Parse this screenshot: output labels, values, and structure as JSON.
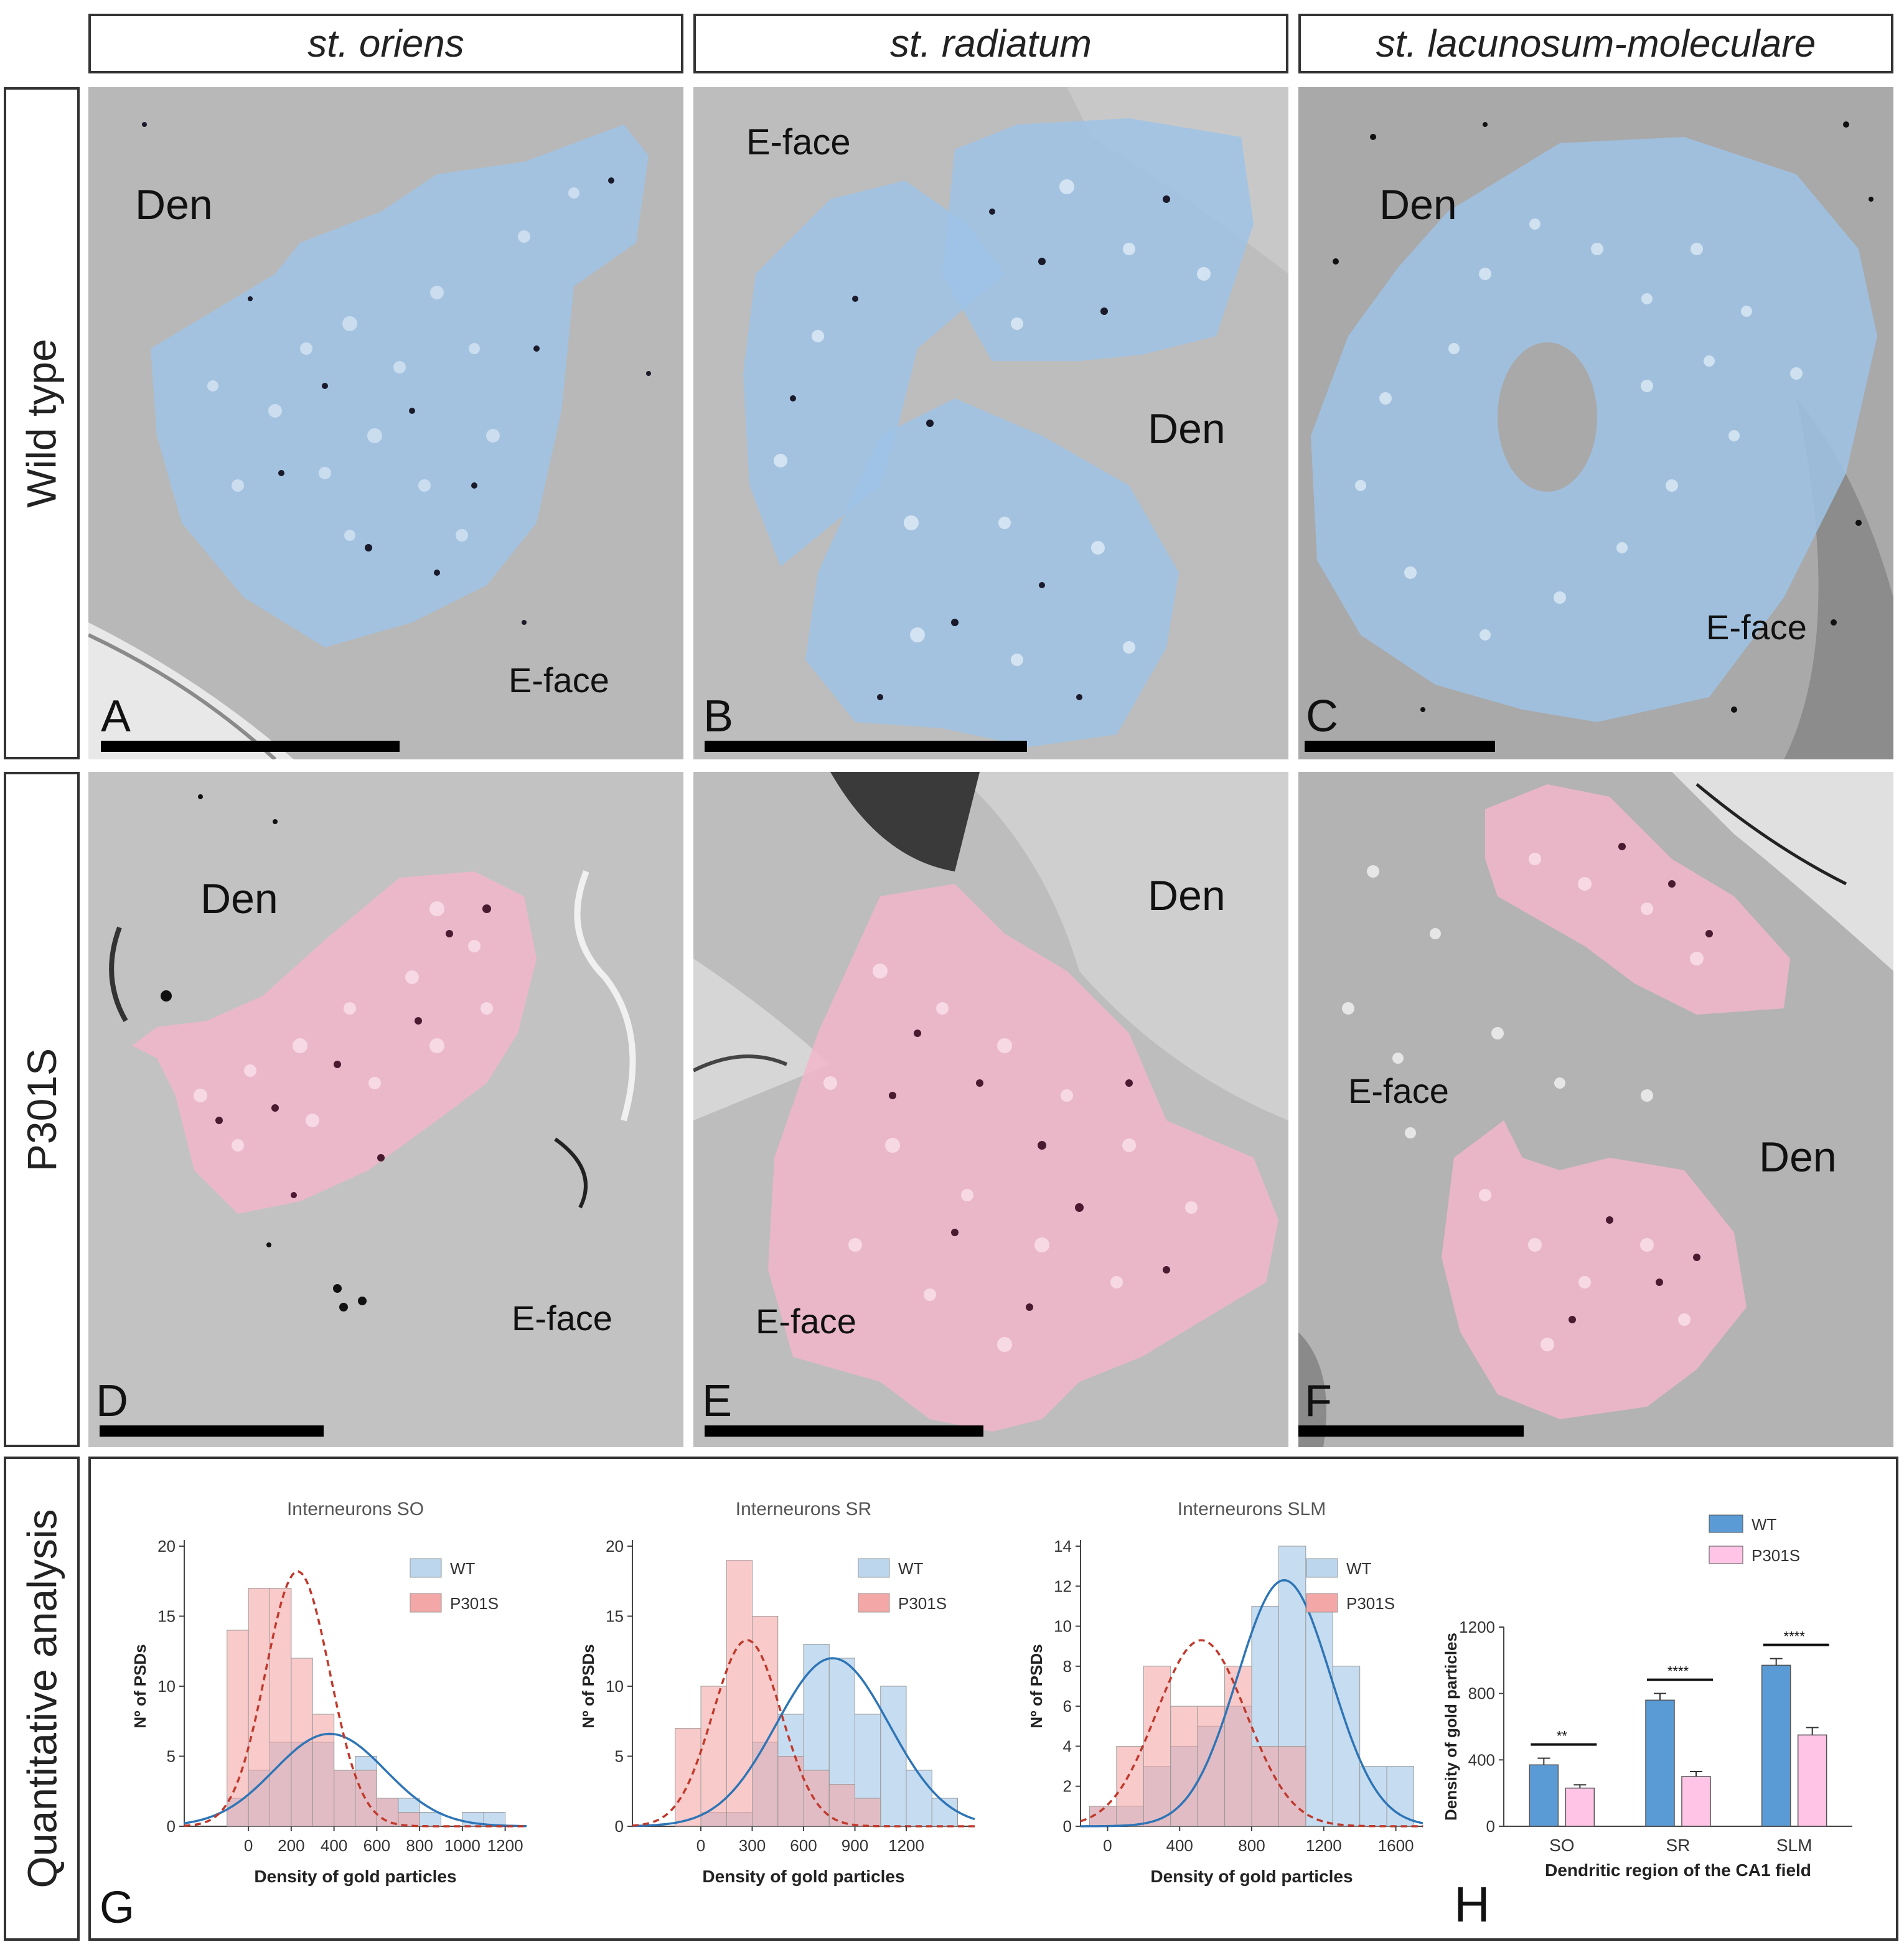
{
  "columns": [
    "st. oriens",
    "st. radiatum",
    "st. lacunosum-moleculare"
  ],
  "rows": [
    "Wild type",
    "P301S",
    "Quantitative analysis"
  ],
  "panels": {
    "A": {
      "letter": "A",
      "labels": [
        "Den",
        "E-face"
      ]
    },
    "B": {
      "letter": "B",
      "labels": [
        "E-face",
        "Den"
      ]
    },
    "C": {
      "letter": "C",
      "labels": [
        "Den",
        "E-face"
      ]
    },
    "D": {
      "letter": "D",
      "labels": [
        "Den",
        "E-face"
      ]
    },
    "E": {
      "letter": "E",
      "labels": [
        "Den",
        "E-face"
      ]
    },
    "F": {
      "letter": "F",
      "labels": [
        "E-face",
        "Den"
      ]
    }
  },
  "colors": {
    "wt_overlay": "#9fc3e6",
    "p301s_overlay": "#f2b6cb",
    "wt_hist": "#bcd6ee",
    "p301s_hist": "#f4a7a7",
    "wt_bar": "#5b9bd5",
    "p301s_bar": "#ffc4e6",
    "wt_curve": "#2e75b6",
    "p301s_curve": "#c0392b"
  },
  "panel_G_letter": "G",
  "panel_H_letter": "H",
  "chart_data": [
    {
      "type": "bar",
      "title": "Interneurons SO",
      "xlabel": "Density of gold particles",
      "ylabel": "Nº of PSDs",
      "xticks": [
        "0",
        "200",
        "400",
        "600",
        "800",
        "1000",
        "1200"
      ],
      "yticks": [
        "0",
        "5",
        "10",
        "15",
        "20"
      ],
      "xlim": [
        -300,
        1300
      ],
      "ylim": [
        0,
        20
      ],
      "bin_width": 100,
      "legend": [
        "WT",
        "P301S"
      ],
      "series": [
        {
          "name": "WT",
          "bins_start": [
            -100,
            0,
            100,
            200,
            300,
            400,
            500,
            600,
            700,
            800,
            900,
            1000,
            1100
          ],
          "values": [
            2,
            4,
            6,
            6,
            6,
            4,
            5,
            2,
            2,
            1,
            0,
            1,
            1
          ],
          "fit_mean": 380,
          "fit_sd": 260,
          "fit_peak": 6.6
        },
        {
          "name": "P301S",
          "bins_start": [
            -100,
            0,
            100,
            200,
            300,
            400,
            500,
            600,
            700
          ],
          "values": [
            14,
            17,
            17,
            12,
            8,
            4,
            4,
            2,
            1
          ],
          "fit_mean": 230,
          "fit_sd": 150,
          "fit_peak": 18.2
        }
      ]
    },
    {
      "type": "bar",
      "title": "Interneurons SR",
      "xlabel": "Density of gold particles",
      "ylabel": "Nº of PSDs",
      "xticks": [
        "0",
        "300",
        "600",
        "900",
        "1200"
      ],
      "yticks": [
        "0",
        "5",
        "10",
        "15",
        "20"
      ],
      "xlim": [
        -400,
        1600
      ],
      "ylim": [
        0,
        20
      ],
      "bin_width": 150,
      "legend": [
        "WT",
        "P301S"
      ],
      "series": [
        {
          "name": "WT",
          "bins_start": [
            0,
            150,
            300,
            450,
            600,
            750,
            900,
            1050,
            1200,
            1350
          ],
          "values": [
            1,
            1,
            6,
            8,
            13,
            12,
            8,
            10,
            4,
            2
          ],
          "fit_mean": 770,
          "fit_sd": 330,
          "fit_peak": 12
        },
        {
          "name": "P301S",
          "bins_start": [
            -150,
            0,
            150,
            300,
            450,
            600,
            750,
            900
          ],
          "values": [
            7,
            10,
            19,
            15,
            5,
            4,
            3,
            2
          ],
          "fit_mean": 270,
          "fit_sd": 200,
          "fit_peak": 13.3
        }
      ]
    },
    {
      "type": "bar",
      "title": "Interneurons SLM",
      "xlabel": "Density of gold particles",
      "ylabel": "Nº of PSDs",
      "xticks": [
        "0",
        "400",
        "800",
        "1200",
        "1600"
      ],
      "yticks": [
        "0",
        "2",
        "4",
        "6",
        "8",
        "10",
        "12",
        "14"
      ],
      "xlim": [
        -150,
        1750
      ],
      "ylim": [
        0,
        14
      ],
      "bin_width": 150,
      "legend": [
        "WT",
        "P301S"
      ],
      "series": [
        {
          "name": "WT",
          "bins_start": [
            -100,
            50,
            200,
            350,
            500,
            650,
            800,
            950,
            1100,
            1250,
            1400,
            1550
          ],
          "values": [
            1,
            1,
            3,
            4,
            5,
            6,
            11,
            14,
            11,
            8,
            3,
            3
          ],
          "fit_mean": 980,
          "fit_sd": 260,
          "fit_peak": 12.3
        },
        {
          "name": "P301S",
          "bins_start": [
            -100,
            50,
            200,
            350,
            500,
            650,
            800,
            950
          ],
          "values": [
            1,
            4,
            8,
            6,
            6,
            8,
            4,
            4
          ],
          "fit_mean": 520,
          "fit_sd": 250,
          "fit_peak": 9.3
        }
      ]
    },
    {
      "type": "bar",
      "title": "",
      "xlabel": "Dendritic region of the CA1 field",
      "ylabel": "Density of gold particles",
      "categories": [
        "SO",
        "SR",
        "SLM"
      ],
      "yticks": [
        "0",
        "400",
        "800",
        "1200"
      ],
      "ylim": [
        0,
        1200
      ],
      "legend": [
        "WT",
        "P301S"
      ],
      "series": [
        {
          "name": "WT",
          "values": [
            370,
            760,
            970
          ],
          "errors": [
            40,
            40,
            40
          ]
        },
        {
          "name": "P301S",
          "values": [
            230,
            300,
            550
          ],
          "errors": [
            20,
            30,
            45
          ]
        }
      ],
      "significance": [
        "**",
        "****",
        "****"
      ]
    }
  ]
}
